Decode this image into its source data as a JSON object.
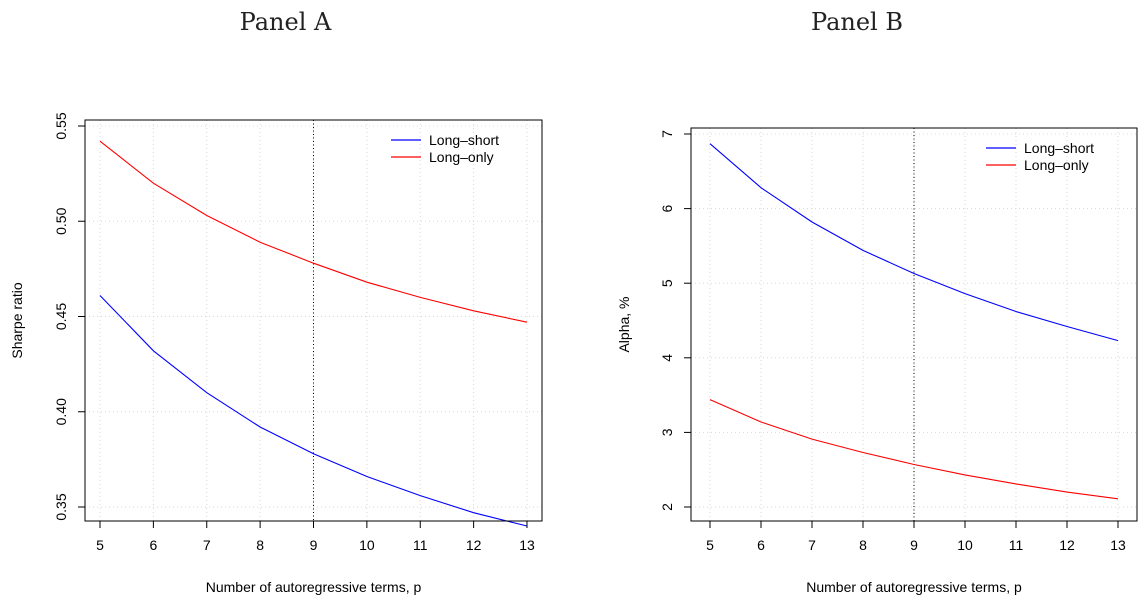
{
  "chart_data": [
    {
      "type": "line",
      "title": "Panel A",
      "xlabel": "Number of autoregressive terms, p",
      "ylabel": "Sharpe ratio",
      "xlim": [
        5,
        13
      ],
      "ylim": [
        0.35,
        0.55
      ],
      "x_ticks": [
        5,
        6,
        7,
        8,
        9,
        10,
        11,
        12,
        13
      ],
      "y_ticks": [
        "0.35",
        "0.40",
        "0.45",
        "0.50",
        "0.55"
      ],
      "vline_x": 9,
      "grid": true,
      "legend_position": "top-right",
      "x": [
        5,
        6,
        7,
        8,
        9,
        10,
        11,
        12,
        13
      ],
      "series": [
        {
          "name": "Long–short",
          "color": "#0000ff",
          "values": [
            0.461,
            0.432,
            0.41,
            0.392,
            0.378,
            0.366,
            0.356,
            0.347,
            0.34
          ]
        },
        {
          "name": "Long–only",
          "color": "#ff0000",
          "values": [
            0.542,
            0.52,
            0.503,
            0.489,
            0.478,
            0.468,
            0.46,
            0.453,
            0.447
          ]
        }
      ]
    },
    {
      "type": "line",
      "title": "Panel B",
      "xlabel": "Number of autoregressive terms, p",
      "ylabel": "Alpha, %",
      "xlim": [
        5,
        13
      ],
      "ylim": [
        2,
        7
      ],
      "x_ticks": [
        5,
        6,
        7,
        8,
        9,
        10,
        11,
        12,
        13
      ],
      "y_ticks": [
        "2",
        "3",
        "4",
        "5",
        "6",
        "7"
      ],
      "vline_x": 9,
      "grid": true,
      "legend_position": "top-right",
      "x": [
        5,
        6,
        7,
        8,
        9,
        10,
        11,
        12,
        13
      ],
      "series": [
        {
          "name": "Long–short",
          "color": "#0000ff",
          "values": [
            6.87,
            6.28,
            5.82,
            5.44,
            5.13,
            4.86,
            4.62,
            4.42,
            4.23
          ]
        },
        {
          "name": "Long–only",
          "color": "#ff0000",
          "values": [
            3.44,
            3.14,
            2.91,
            2.73,
            2.57,
            2.43,
            2.31,
            2.2,
            2.11
          ]
        }
      ]
    }
  ]
}
